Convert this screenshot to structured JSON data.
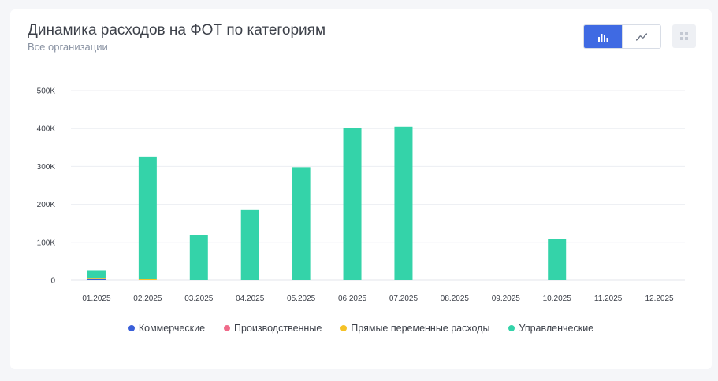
{
  "header": {
    "title": "Динамика расходов на ФОТ по категориям",
    "subtitle": "Все организации"
  },
  "toolbar": {
    "bar_icon": "bar-chart-icon",
    "line_icon": "line-chart-icon",
    "grid_icon": "grid-icon"
  },
  "colors": {
    "accent": "#3f6ae3",
    "commercial": "#3a5fd9",
    "production": "#f06b8a",
    "direct_variable": "#f5c227",
    "management": "#34d3a9"
  },
  "chart_data": {
    "type": "bar",
    "stacked": true,
    "categories": [
      "01.2025",
      "02.2025",
      "03.2025",
      "04.2025",
      "05.2025",
      "06.2025",
      "07.2025",
      "08.2025",
      "09.2025",
      "10.2025",
      "11.2025",
      "12.2025"
    ],
    "series": [
      {
        "name": "Коммерческие",
        "color": "#3a5fd9",
        "values": [
          3000,
          0,
          0,
          0,
          0,
          0,
          0,
          0,
          0,
          0,
          0,
          0
        ]
      },
      {
        "name": "Производственные",
        "color": "#f06b8a",
        "values": [
          2000,
          0,
          0,
          0,
          0,
          0,
          0,
          0,
          0,
          0,
          0,
          0
        ]
      },
      {
        "name": "Прямые переменные расходы",
        "color": "#f5c227",
        "values": [
          1000,
          4000,
          0,
          0,
          0,
          0,
          0,
          0,
          0,
          0,
          0,
          0
        ]
      },
      {
        "name": "Управленческие",
        "color": "#34d3a9",
        "values": [
          20000,
          322000,
          120000,
          185000,
          298000,
          402000,
          405000,
          0,
          0,
          108000,
          0,
          0
        ]
      }
    ],
    "yticks": [
      "0",
      "100K",
      "200K",
      "300K",
      "400K",
      "500K"
    ],
    "ylim": [
      0,
      500000
    ],
    "grid": true,
    "legend_position": "bottom"
  }
}
